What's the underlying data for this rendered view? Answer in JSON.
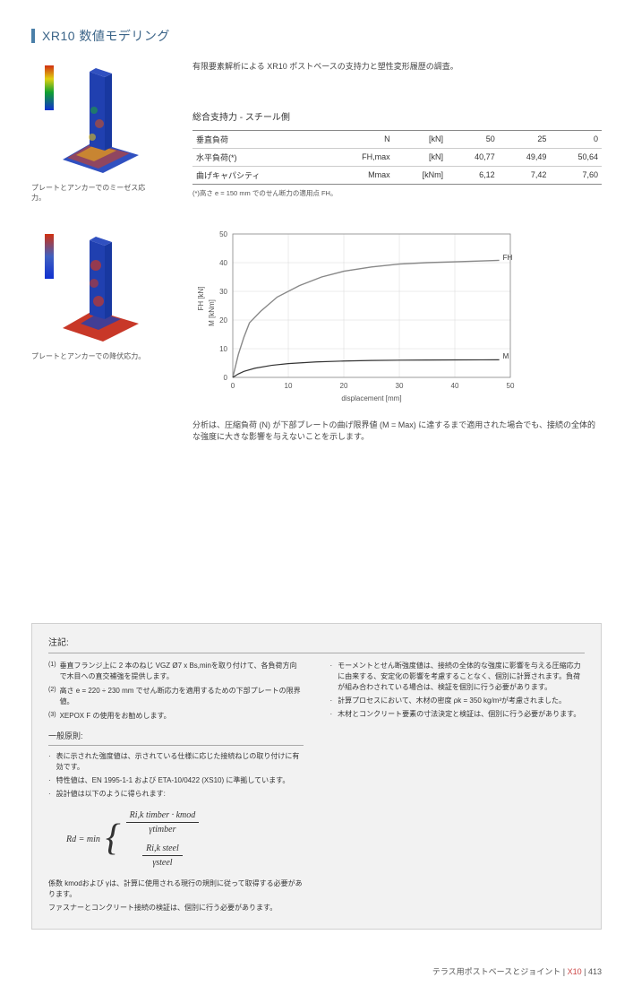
{
  "section_title": "XR10 数値モデリング",
  "intro": "有限要素解析による XR10 ポストベースの支持力と塑性変形履歴の調査。",
  "fig1_caption": "プレートとアンカーでのミーゼス応力。",
  "fig2_caption": "プレートとアンカーでの降伏応力。",
  "table": {
    "title": "総合支持力 - スチール側",
    "rows": [
      {
        "label": "垂直負荷",
        "sym": "N",
        "unit": "[kN]",
        "v1": "50",
        "v2": "25",
        "v3": "0"
      },
      {
        "label": "水平負荷(*)",
        "sym": "FH,max",
        "unit": "[kN]",
        "v1": "40,77",
        "v2": "49,49",
        "v3": "50,64"
      },
      {
        "label": "曲げキャパシティ",
        "sym": "Mmax",
        "unit": "[kNm]",
        "v1": "6,12",
        "v2": "7,42",
        "v3": "7,60"
      }
    ],
    "note": "(*)高さ e = 150 mm でのせん断力の適用点 FH。"
  },
  "chart": {
    "xlabel": "displacement [mm]",
    "ylabel_top": "FH [kN]",
    "ylabel_bot": "M [kNm]",
    "xlim": [
      0,
      50
    ],
    "ylim": [
      0,
      50
    ],
    "xticks": [
      0,
      10,
      20,
      30,
      40,
      50
    ],
    "yticks": [
      0,
      10,
      20,
      30,
      40,
      50
    ],
    "grid_color": "#d8d8d8",
    "series": [
      {
        "label": "FH",
        "color": "#888888",
        "width": 1.4,
        "points": [
          [
            0,
            0
          ],
          [
            1,
            8
          ],
          [
            2,
            14
          ],
          [
            3,
            19
          ],
          [
            5,
            23
          ],
          [
            8,
            28
          ],
          [
            12,
            32
          ],
          [
            16,
            35
          ],
          [
            20,
            37
          ],
          [
            25,
            38.5
          ],
          [
            30,
            39.5
          ],
          [
            35,
            40
          ],
          [
            40,
            40.3
          ],
          [
            45,
            40.6
          ],
          [
            48,
            40.8
          ]
        ],
        "label_x": 48,
        "label_y": 41
      },
      {
        "label": "M",
        "color": "#333333",
        "width": 1.2,
        "points": [
          [
            0,
            0
          ],
          [
            1,
            1.2
          ],
          [
            2,
            2.1
          ],
          [
            4,
            3.2
          ],
          [
            7,
            4.2
          ],
          [
            10,
            4.8
          ],
          [
            15,
            5.4
          ],
          [
            20,
            5.7
          ],
          [
            25,
            5.9
          ],
          [
            30,
            6.0
          ],
          [
            35,
            6.05
          ],
          [
            40,
            6.1
          ],
          [
            45,
            6.12
          ],
          [
            48,
            6.13
          ]
        ],
        "label_x": 48,
        "label_y": 6.5
      }
    ]
  },
  "analysis": "分析は、圧縮負荷 (N) が下部プレートの曲げ限界値 (M = Max) に達するまで適用された場合でも、接続の全体的な強度に大きな影響を与えないことを示します。",
  "notes": {
    "heading": "注記:",
    "numbered": [
      "垂直フランジ上に 2 本のねじ VGZ Ø7 x Bs,minを取り付けて、各負荷方向で木目への直交補強を提供します。",
      "高さ e = 220 ÷ 230 mm でせん断応力を適用するための下部プレートの限界値。",
      "XEPOX F の使用をお勧めします。"
    ],
    "general_heading": "一般原則:",
    "general": [
      "表に示された強度値は、示されている仕様に応じた接続ねじの取り付けに有効です。",
      "特性値は、EN 1995-1-1 および ETA-10/0422 (XS10) に準拠しています。",
      "設計値は以下のように得られます:"
    ],
    "formula": {
      "lhs": "Rd = min",
      "top_num": "Ri,k timber · kmod",
      "top_den": "γtimber",
      "bot_num": "Ri,k steel",
      "bot_den": "γsteel"
    },
    "after_formula": [
      "係数 kmodおよび γは、計算に使用される現行の規則に従って取得する必要があります。",
      "ファスナーとコンクリート接続の検証は、個別に行う必要があります。"
    ],
    "right_col": [
      "モーメントとせん断強度値は、接続の全体的な強度に影響を与える圧縮応力に由来する、安定化の影響を考慮することなく、個別に計算されます。負荷が組み合わされている場合は、検証を個別に行う必要があります。",
      "計算プロセスにおいて、木材の密度 ρk = 350 kg/m³が考慮されました。",
      "木材とコンクリート要素の寸法決定と検証は、個別に行う必要があります。"
    ]
  },
  "footer": {
    "text": "テラス用ポストベースとジョイント",
    "code": "X10",
    "page": "413"
  },
  "colors": {
    "accent": "#4a7fa8",
    "footer_accent": "#c0504d",
    "fea_blue": "#1030d0",
    "fea_red": "#d03010",
    "fea_green": "#10a030",
    "fea_orange": "#e08020"
  }
}
